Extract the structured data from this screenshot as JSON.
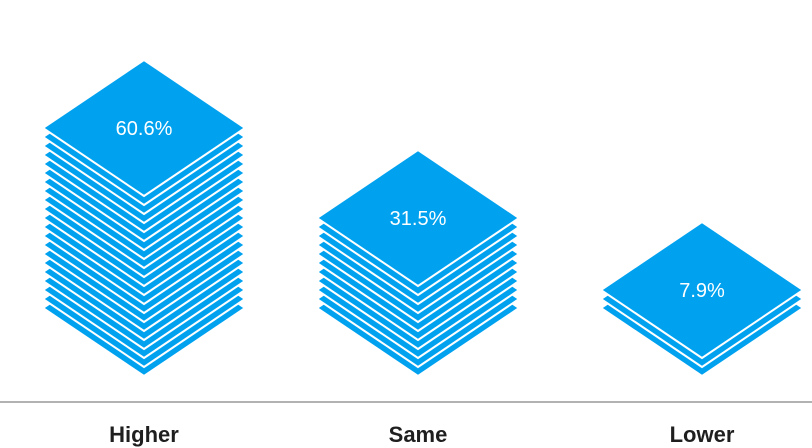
{
  "chart_data": {
    "type": "bar",
    "categories": [
      "Higher",
      "Same",
      "Lower"
    ],
    "values": [
      60.6,
      31.5,
      7.9
    ],
    "value_labels": [
      "60.6%",
      "31.5%",
      "7.9%"
    ],
    "title": "",
    "xlabel": "",
    "ylabel": "",
    "color": "#00a2f0",
    "edge_color": "#ffffff",
    "axis_color": "#999999",
    "grid": false
  }
}
